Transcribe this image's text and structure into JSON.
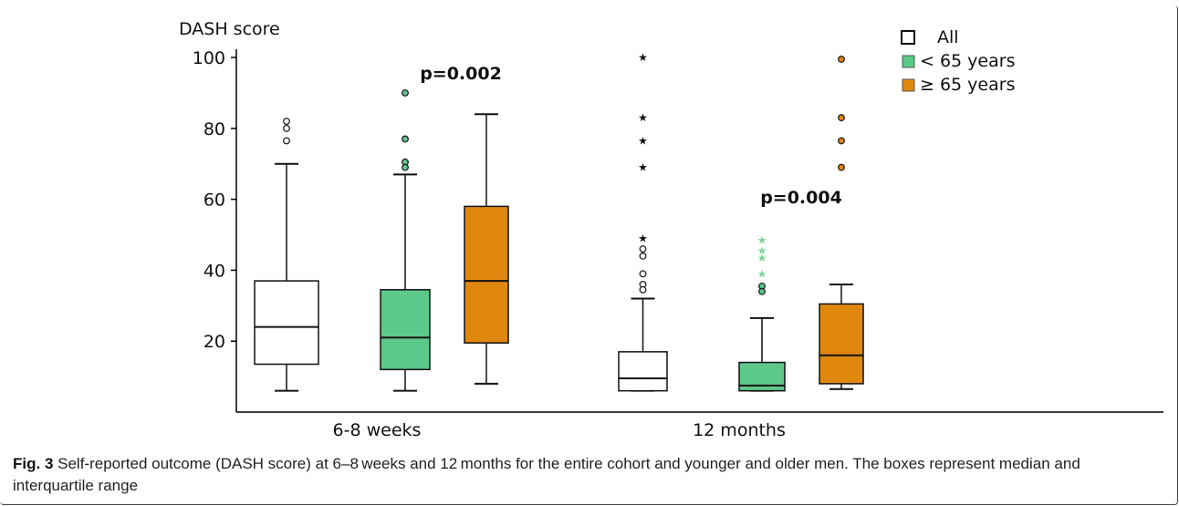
{
  "colors": {
    "all": "#ffffff",
    "young": "#5cc98a",
    "old": "#e0870e",
    "young_star": "#7dd69a",
    "axis": "#000000"
  },
  "chart_data": {
    "type": "box",
    "ylabel": "DASH score",
    "ylim": [
      0,
      100
    ],
    "yticks": [
      20,
      40,
      60,
      80,
      100
    ],
    "categories": [
      "6-8 weeks",
      "12 months"
    ],
    "legend": {
      "placement": "top-right",
      "entries": [
        {
          "label": "All",
          "color_key": "all"
        },
        {
          "label": "< 65 years",
          "color_key": "young"
        },
        {
          "label": "≥ 65 years",
          "color_key": "old"
        }
      ]
    },
    "annotations": [
      {
        "text": "p=0.002",
        "group": 0
      },
      {
        "text": "p=0.004",
        "group": 1
      }
    ],
    "boxes": [
      {
        "group": 0,
        "series": "All",
        "color_key": "all",
        "whisker_low": 6,
        "q1": 13.5,
        "median": 24,
        "q3": 37,
        "whisker_high": 70,
        "outliers": [
          {
            "y": 82,
            "shape": "circle"
          },
          {
            "y": 80,
            "shape": "circle"
          },
          {
            "y": 76.5,
            "shape": "circle"
          }
        ]
      },
      {
        "group": 0,
        "series": "< 65 years",
        "color_key": "young",
        "whisker_low": 6,
        "q1": 12,
        "median": 21,
        "q3": 34.5,
        "whisker_high": 67,
        "outliers": [
          {
            "y": 90,
            "shape": "circle"
          },
          {
            "y": 77,
            "shape": "circle"
          },
          {
            "y": 70.5,
            "shape": "circle"
          },
          {
            "y": 69,
            "shape": "circle"
          }
        ]
      },
      {
        "group": 0,
        "series": "≥ 65 years",
        "color_key": "old",
        "whisker_low": 8,
        "q1": 19.5,
        "median": 37,
        "q3": 58,
        "whisker_high": 84,
        "outliers": []
      },
      {
        "group": 1,
        "series": "All",
        "color_key": "all",
        "whisker_low": 6,
        "q1": 6,
        "median": 9.5,
        "q3": 17,
        "whisker_high": 32,
        "outliers": [
          {
            "y": 100,
            "shape": "star"
          },
          {
            "y": 83,
            "shape": "star"
          },
          {
            "y": 76.5,
            "shape": "star"
          },
          {
            "y": 69,
            "shape": "star"
          },
          {
            "y": 49,
            "shape": "star"
          },
          {
            "y": 46,
            "shape": "circle"
          },
          {
            "y": 44,
            "shape": "circle"
          },
          {
            "y": 39,
            "shape": "circle"
          },
          {
            "y": 36,
            "shape": "circle"
          },
          {
            "y": 34.5,
            "shape": "circle"
          }
        ]
      },
      {
        "group": 1,
        "series": "< 65 years",
        "color_key": "young",
        "whisker_low": 6,
        "q1": 6,
        "median": 7.5,
        "q3": 14,
        "whisker_high": 26.5,
        "outliers": [
          {
            "y": 48.5,
            "shape": "star"
          },
          {
            "y": 45.5,
            "shape": "star"
          },
          {
            "y": 43.5,
            "shape": "star"
          },
          {
            "y": 39,
            "shape": "star"
          },
          {
            "y": 35.5,
            "shape": "circle"
          },
          {
            "y": 34,
            "shape": "circle"
          }
        ]
      },
      {
        "group": 1,
        "series": "≥ 65 years",
        "color_key": "old",
        "whisker_low": 6.5,
        "q1": 8,
        "median": 16,
        "q3": 30.5,
        "whisker_high": 36,
        "outliers": [
          {
            "y": 99.5,
            "shape": "circle"
          },
          {
            "y": 83,
            "shape": "circle"
          },
          {
            "y": 76.5,
            "shape": "circle"
          },
          {
            "y": 69,
            "shape": "circle"
          }
        ]
      }
    ]
  },
  "caption": {
    "label": "Fig. 3",
    "text": "Self-reported outcome (DASH score) at 6–8 weeks and 12 months for the entire cohort and younger and older men. The boxes represent median and interquartile range"
  }
}
